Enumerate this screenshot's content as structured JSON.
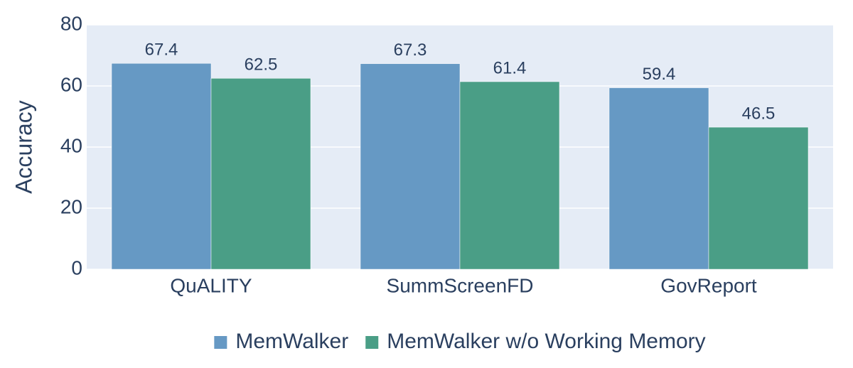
{
  "chart_data": {
    "type": "bar",
    "y_label": "Accuracy",
    "categories": [
      "QuALITY",
      "SummScreenFD",
      "GovReport"
    ],
    "series": [
      {
        "name": "MemWalker",
        "color": "#6699c4",
        "values": [
          67.4,
          67.3,
          59.4
        ]
      },
      {
        "name": "MemWalker w/o Working Memory",
        "color": "#4a9e86",
        "values": [
          62.5,
          61.4,
          46.5
        ]
      }
    ],
    "ylim": [
      0,
      80
    ],
    "yticks": [
      0,
      20,
      40,
      60,
      80
    ],
    "grid": true,
    "legend": "bottom"
  }
}
